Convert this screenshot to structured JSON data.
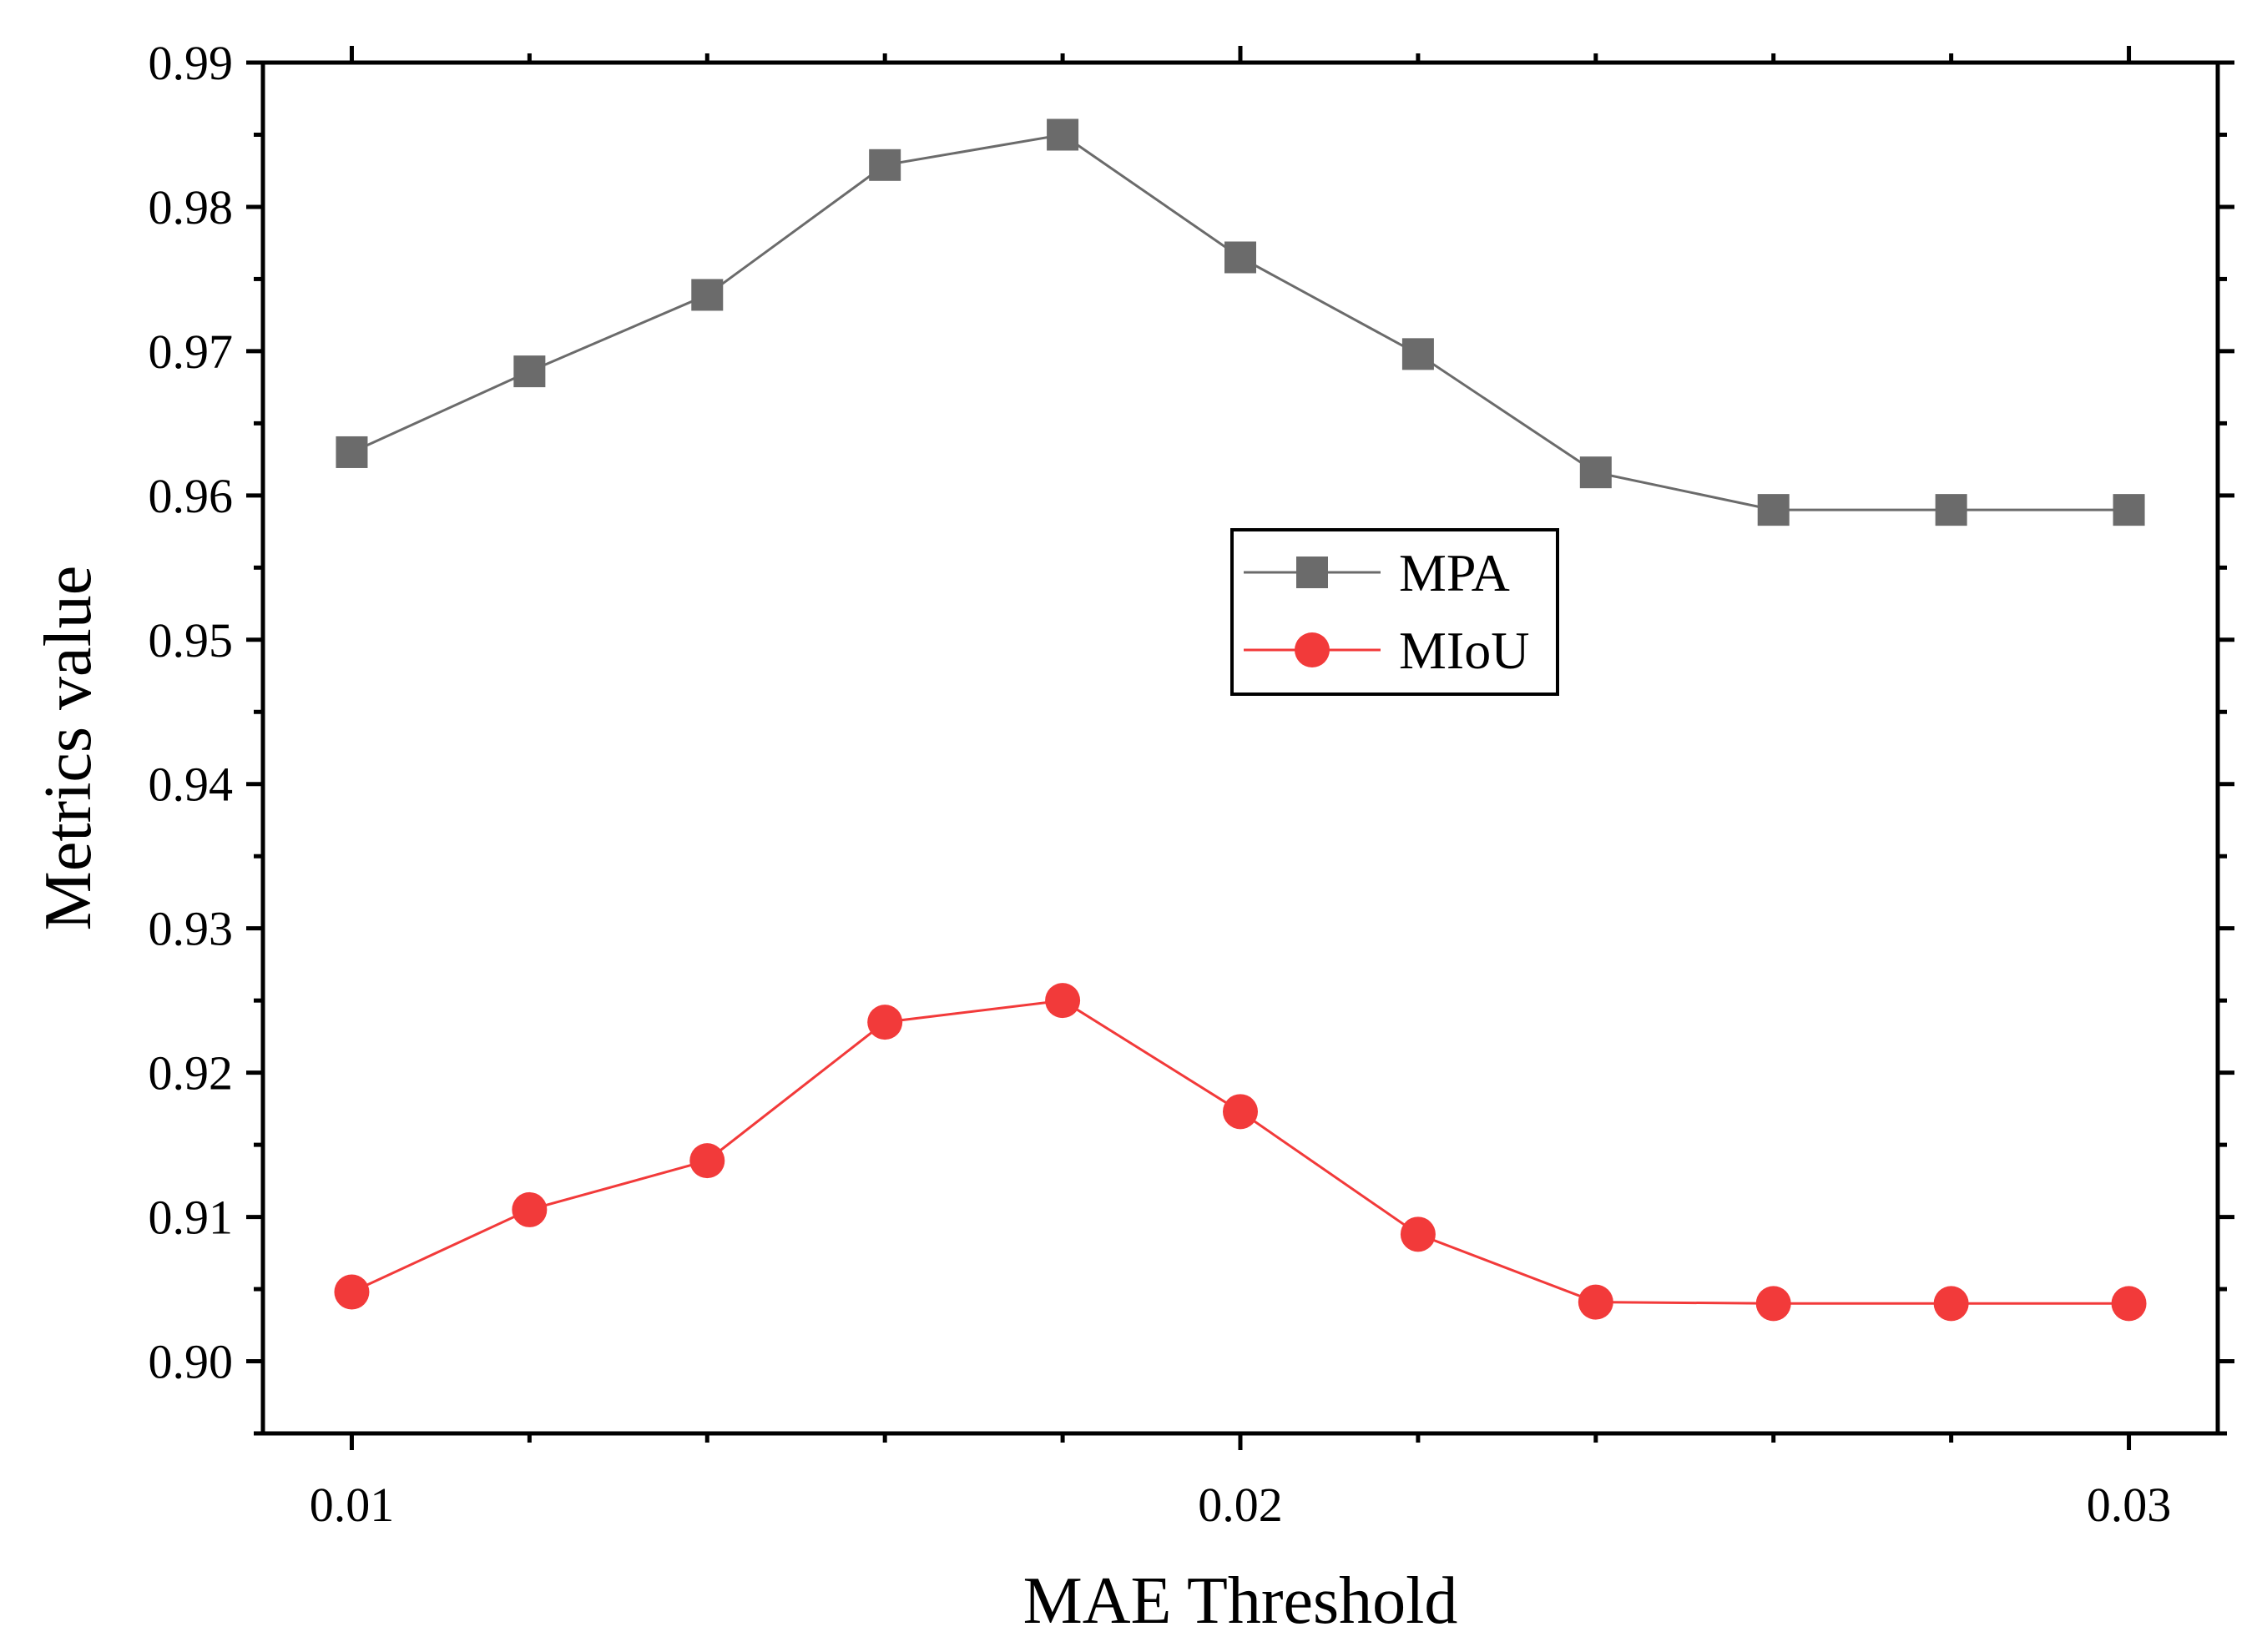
{
  "chart_data": {
    "type": "line",
    "title": "",
    "xlabel": "MAE Threshold",
    "ylabel": "Metrics value",
    "xlim": [
      0.009,
      0.031
    ],
    "ylim": [
      0.895,
      0.99
    ],
    "x_ticks": [
      0.01,
      0.02,
      0.03
    ],
    "x_tick_labels": [
      "0.01",
      "0.02",
      "0.03"
    ],
    "x_minor_ticks": [
      0.012,
      0.014,
      0.016,
      0.018,
      0.022,
      0.024,
      0.026,
      0.028
    ],
    "y_ticks": [
      0.9,
      0.91,
      0.92,
      0.93,
      0.94,
      0.95,
      0.96,
      0.97,
      0.98,
      0.99
    ],
    "y_tick_labels": [
      "0.90",
      "0.91",
      "0.92",
      "0.93",
      "0.94",
      "0.95",
      "0.96",
      "0.97",
      "0.98",
      "0.99"
    ],
    "grid": false,
    "legend_position": "center-right",
    "x": [
      0.01,
      0.012,
      0.014,
      0.016,
      0.018,
      0.02,
      0.022,
      0.024,
      0.026,
      0.028,
      0.03
    ],
    "series": [
      {
        "name": "MPA",
        "marker": "square",
        "color": "#6b6b6b",
        "values": [
          0.963,
          0.9686,
          0.9739,
          0.9829,
          0.985,
          0.9765,
          0.9698,
          0.9616,
          0.959,
          0.959,
          0.959
        ]
      },
      {
        "name": "MIoU",
        "marker": "circle",
        "color": "#f23a3a",
        "values": [
          0.9048,
          0.9105,
          0.9139,
          0.9235,
          0.925,
          0.9173,
          0.9088,
          0.9041,
          0.904,
          0.904,
          0.904
        ]
      }
    ]
  }
}
